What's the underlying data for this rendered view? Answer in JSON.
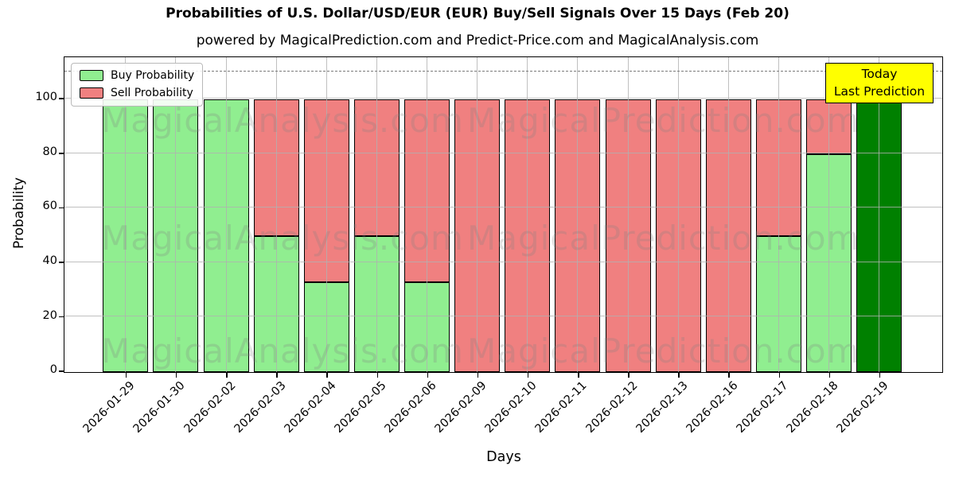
{
  "chart_data": {
    "type": "bar",
    "stacked": true,
    "title": "Probabilities of U.S. Dollar/USD/EUR (EUR) Buy/Sell Signals Over 15 Days (Feb 20)",
    "subtitle": "powered by MagicalPrediction.com and Predict-Price.com and MagicalAnalysis.com",
    "xlabel": "Days",
    "ylabel": "Probability",
    "categories": [
      "2026-01-29",
      "2026-01-30",
      "2026-02-02",
      "2026-02-03",
      "2026-02-04",
      "2026-02-05",
      "2026-02-06",
      "2026-02-09",
      "2026-02-10",
      "2026-02-11",
      "2026-02-12",
      "2026-02-13",
      "2026-02-16",
      "2026-02-17",
      "2026-02-18",
      "2026-02-19"
    ],
    "series": [
      {
        "name": "Buy Probability",
        "color": "#90EE90",
        "values": [
          100,
          100,
          100,
          50,
          33,
          50,
          33,
          0,
          0,
          0,
          0,
          0,
          0,
          50,
          80,
          0
        ]
      },
      {
        "name": "Sell Probability",
        "color": "#F08080",
        "values": [
          0,
          0,
          0,
          50,
          67,
          50,
          67,
          100,
          100,
          100,
          100,
          100,
          100,
          50,
          20,
          0
        ]
      },
      {
        "name": "Last Prediction (Today)",
        "color": "#008000",
        "values": [
          0,
          0,
          0,
          0,
          0,
          0,
          0,
          0,
          0,
          0,
          0,
          0,
          0,
          0,
          0,
          100
        ]
      }
    ],
    "ylim": [
      0,
      115
    ],
    "yticks": [
      0,
      20,
      40,
      60,
      80,
      100
    ],
    "grid": true,
    "legend_position": "upper left",
    "dashed_line_y": 110,
    "annotation": {
      "lines": [
        "Today",
        "Last Prediction"
      ],
      "bg_color": "#FFFF00"
    },
    "watermarks": {
      "left": "MagicalAnalysis.com",
      "right": "MagicalPrediction.com"
    }
  }
}
